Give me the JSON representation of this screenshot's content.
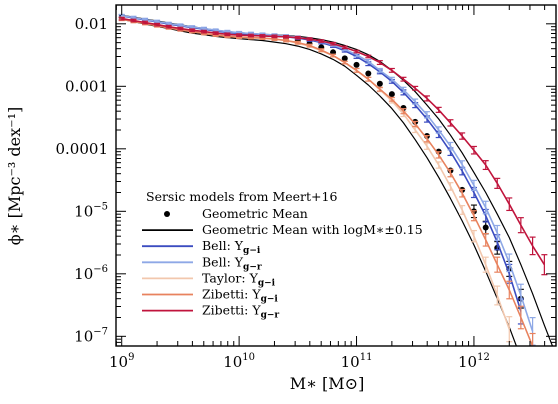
{
  "chart_data": {
    "type": "line",
    "title": "",
    "xlabel": "M∗ [M⊙]",
    "ylabel": "ϕ∗ [Mpc⁻³ dex⁻¹]",
    "x_scale": "log",
    "y_scale": "log",
    "xlim": [
      894000000.0,
      5000000000000.0
    ],
    "ylim": [
      7e-08,
      0.02
    ],
    "grid": false,
    "x_ticks": [
      {
        "value": 1000000000.0,
        "base": "10",
        "exp": "9"
      },
      {
        "value": 10000000000.0,
        "base": "10",
        "exp": "10"
      },
      {
        "value": 100000000000.0,
        "base": "10",
        "exp": "11"
      },
      {
        "value": 1000000000000.0,
        "base": "10",
        "exp": "12"
      }
    ],
    "y_ticks": [
      {
        "value": 0.01,
        "text": "0.01"
      },
      {
        "value": 0.001,
        "text": "0.001"
      },
      {
        "value": 0.0001,
        "text": "0.0001"
      },
      {
        "value": 1e-05,
        "base": "10",
        "exp": "−5"
      },
      {
        "value": 1e-06,
        "base": "10",
        "exp": "−6"
      },
      {
        "value": 1e-07,
        "base": "10",
        "exp": "−7"
      }
    ],
    "legend": {
      "placement": "bottom-left",
      "title": "Sersic models from Meert+16",
      "entries": [
        {
          "label": "Geometric Mean",
          "marker": "dot"
        },
        {
          "label": "Geometric Mean with logM∗±0.15",
          "marker": "line"
        },
        {
          "label_main": "Bell: ",
          "label_sym": "Υ",
          "label_sub": "g−i",
          "marker": "line"
        },
        {
          "label_main": "Bell: ",
          "label_sym": "Υ",
          "label_sub": "g−r",
          "marker": "line"
        },
        {
          "label_main": "Taylor: ",
          "label_sym": "Υ",
          "label_sub": "g−i",
          "marker": "line"
        },
        {
          "label_main": "Zibetti: ",
          "label_sym": "Υ",
          "label_sub": "g−i",
          "marker": "line"
        },
        {
          "label_main": "Zibetti: ",
          "label_sym": "Υ",
          "label_sub": "g−r",
          "marker": "line"
        }
      ]
    },
    "series": [
      {
        "name": "Geometric Mean",
        "style": "points",
        "color": "#000000",
        "x": [
          1000000000.0,
          1260000000.0,
          1580000000.0,
          2000000000.0,
          2510000000.0,
          3160000000.0,
          3980000000.0,
          5010000000.0,
          6310000000.0,
          7940000000.0,
          10000000000.0,
          12600000000.0,
          15800000000.0,
          20000000000.0,
          25100000000.0,
          31600000000.0,
          39800000000.0,
          50100000000.0,
          63100000000.0,
          79400000000.0,
          100000000000.0,
          126000000000.0,
          158000000000.0,
          200000000000.0,
          251000000000.0,
          316000000000.0,
          398000000000.0,
          501000000000.0,
          631000000000.0,
          794000000000.0,
          1000000000000.0,
          1260000000000.0,
          1580000000000.0,
          2000000000000.0,
          2510000000000.0
        ],
        "y": [
          0.0127,
          0.0117,
          0.0108,
          0.0099,
          0.0091,
          0.0085,
          0.0079,
          0.0074,
          0.007,
          0.0067,
          0.0065,
          0.0063,
          0.0062,
          0.006,
          0.0057,
          0.0053,
          0.0048,
          0.0042,
          0.0035,
          0.0028,
          0.0022,
          0.0016,
          0.0011,
          0.00075,
          0.00045,
          0.00027,
          0.00016,
          9e-05,
          4.5e-05,
          2.2e-05,
          1e-05,
          5.5e-06,
          2.6e-06,
          1.2e-06,
          4e-07
        ],
        "err": [
          0,
          0,
          0,
          0,
          0,
          0,
          0,
          0,
          0,
          0,
          0,
          0,
          0,
          0,
          0,
          0,
          0,
          0,
          0,
          0,
          0,
          0,
          0,
          0,
          0,
          0,
          0,
          0,
          0,
          0,
          0.1,
          0.1,
          0.1,
          0.12,
          0.15
        ]
      },
      {
        "name": "Geometric Mean with logM∗±0.15 (upper)",
        "style": "line",
        "color": "#000000",
        "x": [
          1000000000.0,
          1260000000.0,
          1580000000.0,
          2000000000.0,
          2510000000.0,
          3160000000.0,
          3980000000.0,
          5010000000.0,
          6310000000.0,
          7940000000.0,
          10000000000.0,
          12600000000.0,
          15800000000.0,
          20000000000.0,
          25100000000.0,
          31600000000.0,
          39800000000.0,
          50100000000.0,
          63100000000.0,
          79400000000.0,
          100000000000.0,
          126000000000.0,
          158000000000.0,
          200000000000.0,
          251000000000.0,
          316000000000.0,
          398000000000.0,
          501000000000.0,
          631000000000.0,
          794000000000.0,
          1000000000000.0,
          1260000000000.0,
          1580000000000.0,
          2000000000000.0,
          2510000000000.0,
          3160000000000.0,
          3980000000000.0,
          5000000000000.0
        ],
        "y": [
          0.0137,
          0.0128,
          0.0119,
          0.0111,
          0.0103,
          0.0096,
          0.009,
          0.0084,
          0.0079,
          0.0075,
          0.0072,
          0.007,
          0.0068,
          0.0067,
          0.0065,
          0.0063,
          0.006,
          0.0056,
          0.0051,
          0.0045,
          0.0039,
          0.0032,
          0.0025,
          0.0018,
          0.00125,
          0.00082,
          0.0005,
          0.0003,
          0.000165,
          8.6e-05,
          4.2e-05,
          2e-05,
          9e-06,
          3.8e-06,
          1.4e-06,
          4.8e-07,
          1.5e-07,
          5e-08
        ]
      },
      {
        "name": "Geometric Mean with logM∗±0.15 (lower)",
        "style": "line",
        "color": "#000000",
        "x": [
          1000000000.0,
          1260000000.0,
          1580000000.0,
          2000000000.0,
          2510000000.0,
          3160000000.0,
          3980000000.0,
          5010000000.0,
          6310000000.0,
          7940000000.0,
          10000000000.0,
          12600000000.0,
          15800000000.0,
          20000000000.0,
          25100000000.0,
          31600000000.0,
          39800000000.0,
          50100000000.0,
          63100000000.0,
          79400000000.0,
          100000000000.0,
          126000000000.0,
          158000000000.0,
          200000000000.0,
          251000000000.0,
          316000000000.0,
          398000000000.0,
          501000000000.0,
          631000000000.0,
          794000000000.0,
          1000000000000.0,
          1260000000000.0,
          1580000000000.0,
          2000000000000.0,
          2510000000000.0
        ],
        "y": [
          0.0118,
          0.0108,
          0.0099,
          0.0091,
          0.0084,
          0.0077,
          0.0071,
          0.0067,
          0.0063,
          0.006,
          0.0058,
          0.0056,
          0.0054,
          0.0051,
          0.0048,
          0.0044,
          0.0039,
          0.0033,
          0.0027,
          0.0021,
          0.0015,
          0.00105,
          0.0007,
          0.00044,
          0.00026,
          0.00014,
          7.2e-05,
          3.5e-05,
          1.6e-05,
          7e-06,
          2.9e-06,
          1.1e-06,
          4e-07,
          1.4e-07,
          4.5e-08
        ]
      },
      {
        "name": "Bell: Υg−i",
        "style": "errline",
        "color": "#3b4cc0",
        "x": [
          1000000000.0,
          1260000000.0,
          1580000000.0,
          2000000000.0,
          2510000000.0,
          3160000000.0,
          3980000000.0,
          5010000000.0,
          6310000000.0,
          7940000000.0,
          10000000000.0,
          12600000000.0,
          15800000000.0,
          20000000000.0,
          25100000000.0,
          31600000000.0,
          39800000000.0,
          50100000000.0,
          63100000000.0,
          79400000000.0,
          100000000000.0,
          126000000000.0,
          158000000000.0,
          200000000000.0,
          251000000000.0,
          316000000000.0,
          398000000000.0,
          501000000000.0,
          631000000000.0,
          794000000000.0,
          1000000000000.0,
          1260000000000.0,
          1580000000000.0,
          2000000000000.0,
          2510000000000.0
        ],
        "y": [
          0.0133,
          0.0124,
          0.0115,
          0.0107,
          0.0099,
          0.0093,
          0.0087,
          0.0082,
          0.0077,
          0.0073,
          0.007,
          0.0068,
          0.0066,
          0.0064,
          0.0062,
          0.0059,
          0.0055,
          0.005,
          0.0044,
          0.0037,
          0.003,
          0.0023,
          0.0017,
          0.0012,
          0.0008,
          0.0005,
          0.0003,
          0.00017,
          9e-05,
          4.4e-05,
          2e-05,
          8.5e-06,
          3.2e-06,
          1e-06,
          2.5e-07
        ],
        "err": [
          0.02,
          0.02,
          0.02,
          0.02,
          0.02,
          0.02,
          0.02,
          0.02,
          0.02,
          0.02,
          0.02,
          0.02,
          0.02,
          0.02,
          0.02,
          0.02,
          0.02,
          0.02,
          0.02,
          0.02,
          0.03,
          0.03,
          0.03,
          0.03,
          0.04,
          0.04,
          0.05,
          0.05,
          0.06,
          0.06,
          0.08,
          0.1,
          0.12,
          0.15,
          0.2
        ]
      },
      {
        "name": "Bell: Υg−r",
        "style": "errline",
        "color": "#8ea8e6",
        "x": [
          1000000000.0,
          1260000000.0,
          1580000000.0,
          2000000000.0,
          2510000000.0,
          3160000000.0,
          3980000000.0,
          5010000000.0,
          6310000000.0,
          7940000000.0,
          10000000000.0,
          12600000000.0,
          15800000000.0,
          20000000000.0,
          25100000000.0,
          31600000000.0,
          39800000000.0,
          50100000000.0,
          63100000000.0,
          79400000000.0,
          100000000000.0,
          126000000000.0,
          158000000000.0,
          200000000000.0,
          251000000000.0,
          316000000000.0,
          398000000000.0,
          501000000000.0,
          631000000000.0,
          794000000000.0,
          1000000000000.0,
          1260000000000.0,
          1580000000000.0,
          2000000000000.0,
          2510000000000.0,
          3160000000000.0
        ],
        "y": [
          0.0135,
          0.0126,
          0.0117,
          0.0109,
          0.0101,
          0.0095,
          0.0089,
          0.0084,
          0.0079,
          0.0075,
          0.0072,
          0.007,
          0.0068,
          0.0066,
          0.0064,
          0.0061,
          0.0057,
          0.0052,
          0.0046,
          0.0039,
          0.0032,
          0.0025,
          0.0018,
          0.0013,
          0.00088,
          0.00057,
          0.00035,
          0.0002,
          0.00011,
          5.6e-05,
          2.6e-05,
          1.15e-05,
          4.5e-06,
          1.5e-06,
          4.5e-07,
          1.2e-07
        ],
        "err": [
          0.02,
          0.02,
          0.02,
          0.02,
          0.02,
          0.02,
          0.02,
          0.02,
          0.02,
          0.02,
          0.02,
          0.02,
          0.02,
          0.02,
          0.02,
          0.02,
          0.02,
          0.02,
          0.02,
          0.02,
          0.03,
          0.03,
          0.03,
          0.03,
          0.04,
          0.04,
          0.05,
          0.05,
          0.06,
          0.06,
          0.08,
          0.1,
          0.12,
          0.14,
          0.18,
          0.22
        ]
      },
      {
        "name": "Taylor: Υg−i",
        "style": "errline",
        "color": "#f2c7ad",
        "x": [
          1000000000.0,
          1260000000.0,
          1580000000.0,
          2000000000.0,
          2510000000.0,
          3160000000.0,
          3980000000.0,
          5010000000.0,
          6310000000.0,
          7940000000.0,
          10000000000.0,
          12600000000.0,
          15800000000.0,
          20000000000.0,
          25100000000.0,
          31600000000.0,
          39800000000.0,
          50100000000.0,
          63100000000.0,
          79400000000.0,
          100000000000.0,
          126000000000.0,
          158000000000.0,
          200000000000.0,
          251000000000.0,
          316000000000.0,
          398000000000.0,
          501000000000.0,
          631000000000.0,
          794000000000.0,
          1000000000000.0,
          1260000000000.0,
          1580000000000.0,
          2000000000000.0
        ],
        "y": [
          0.0122,
          0.0112,
          0.0103,
          0.0095,
          0.0088,
          0.0082,
          0.0076,
          0.0071,
          0.0067,
          0.0064,
          0.0062,
          0.0061,
          0.0059,
          0.0057,
          0.0054,
          0.0049,
          0.0044,
          0.0037,
          0.0031,
          0.0024,
          0.0018,
          0.0013,
          0.00088,
          0.00058,
          0.00036,
          0.0002,
          0.00011,
          5.5e-05,
          2.5e-05,
          1.05e-05,
          4e-06,
          1.4e-06,
          4.5e-07,
          1.3e-07
        ],
        "err": [
          0.02,
          0.02,
          0.02,
          0.02,
          0.02,
          0.02,
          0.02,
          0.02,
          0.02,
          0.02,
          0.02,
          0.02,
          0.02,
          0.02,
          0.02,
          0.02,
          0.02,
          0.02,
          0.02,
          0.02,
          0.03,
          0.03,
          0.03,
          0.03,
          0.04,
          0.04,
          0.05,
          0.05,
          0.06,
          0.07,
          0.09,
          0.12,
          0.15,
          0.2
        ]
      },
      {
        "name": "Zibetti: Υg−i",
        "style": "errline",
        "color": "#e8825e",
        "x": [
          1000000000.0,
          1260000000.0,
          1580000000.0,
          2000000000.0,
          2510000000.0,
          3160000000.0,
          3980000000.0,
          5010000000.0,
          6310000000.0,
          7940000000.0,
          10000000000.0,
          12600000000.0,
          15800000000.0,
          20000000000.0,
          25100000000.0,
          31600000000.0,
          39800000000.0,
          50100000000.0,
          63100000000.0,
          79400000000.0,
          100000000000.0,
          126000000000.0,
          158000000000.0,
          200000000000.0,
          251000000000.0,
          316000000000.0,
          398000000000.0,
          501000000000.0,
          631000000000.0,
          794000000000.0,
          1000000000000.0,
          1260000000000.0,
          1580000000000.0,
          2000000000000.0,
          2510000000000.0,
          3160000000000.0
        ],
        "y": [
          0.0118,
          0.0109,
          0.0101,
          0.0093,
          0.0086,
          0.008,
          0.0075,
          0.007,
          0.0066,
          0.0063,
          0.0061,
          0.006,
          0.0059,
          0.0057,
          0.0054,
          0.005,
          0.0045,
          0.0038,
          0.0031,
          0.0024,
          0.0018,
          0.0013,
          0.0009,
          0.00062,
          0.0004,
          0.00025,
          0.000145,
          8e-05,
          4.1e-05,
          1.95e-05,
          8.5e-06,
          3.5e-06,
          1.4e-06,
          5.5e-07,
          2e-07,
          7e-08
        ],
        "err": [
          0.02,
          0.02,
          0.02,
          0.02,
          0.02,
          0.02,
          0.02,
          0.02,
          0.02,
          0.02,
          0.02,
          0.02,
          0.02,
          0.02,
          0.02,
          0.02,
          0.02,
          0.02,
          0.02,
          0.02,
          0.03,
          0.03,
          0.03,
          0.03,
          0.04,
          0.04,
          0.05,
          0.05,
          0.06,
          0.06,
          0.08,
          0.1,
          0.12,
          0.14,
          0.18,
          0.2
        ]
      },
      {
        "name": "Zibetti: Υg−r",
        "style": "errline",
        "color": "#c0143c",
        "x": [
          1000000000.0,
          1260000000.0,
          1580000000.0,
          2000000000.0,
          2510000000.0,
          3160000000.0,
          3980000000.0,
          5010000000.0,
          6310000000.0,
          7940000000.0,
          10000000000.0,
          12600000000.0,
          15800000000.0,
          20000000000.0,
          25100000000.0,
          31600000000.0,
          39800000000.0,
          50100000000.0,
          63100000000.0,
          79400000000.0,
          100000000000.0,
          126000000000.0,
          158000000000.0,
          200000000000.0,
          251000000000.0,
          316000000000.0,
          398000000000.0,
          501000000000.0,
          631000000000.0,
          794000000000.0,
          1000000000000.0,
          1260000000000.0,
          1580000000000.0,
          2000000000000.0,
          2510000000000.0,
          3160000000000.0,
          3980000000000.0
        ],
        "y": [
          0.0121,
          0.0113,
          0.0105,
          0.0097,
          0.009,
          0.0084,
          0.0079,
          0.0075,
          0.0071,
          0.0068,
          0.0066,
          0.0065,
          0.0064,
          0.0063,
          0.0062,
          0.006,
          0.0057,
          0.0053,
          0.0048,
          0.0042,
          0.0036,
          0.003,
          0.0024,
          0.0018,
          0.0013,
          0.00093,
          0.00064,
          0.00042,
          0.00026,
          0.00016,
          9.5e-05,
          5.5e-05,
          2.8e-05,
          1.3e-05,
          6e-06,
          2.8e-06,
          1.4e-06
        ],
        "err": [
          0.02,
          0.02,
          0.02,
          0.02,
          0.02,
          0.02,
          0.02,
          0.02,
          0.02,
          0.02,
          0.02,
          0.02,
          0.02,
          0.02,
          0.02,
          0.02,
          0.02,
          0.02,
          0.02,
          0.02,
          0.02,
          0.02,
          0.03,
          0.03,
          0.03,
          0.03,
          0.04,
          0.04,
          0.05,
          0.05,
          0.06,
          0.07,
          0.08,
          0.1,
          0.12,
          0.14,
          0.16
        ]
      }
    ]
  }
}
